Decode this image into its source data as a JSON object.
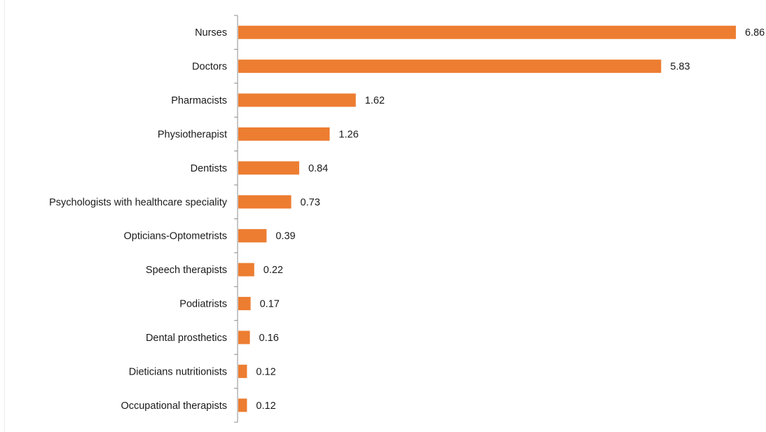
{
  "chart_data": {
    "type": "bar",
    "orientation": "horizontal",
    "categories": [
      "Nurses",
      "Doctors",
      "Pharmacists",
      "Physiotherapist",
      "Dentists",
      "Psychologists with healthcare speciality",
      "Opticians-Optometrists",
      "Speech therapists",
      "Podiatrists",
      "Dental prosthetics",
      "Dieticians nutritionists",
      "Occupational therapists"
    ],
    "values": [
      6.86,
      5.83,
      1.62,
      1.26,
      0.84,
      0.73,
      0.39,
      0.22,
      0.17,
      0.16,
      0.12,
      0.12
    ],
    "value_labels": [
      "6.86",
      "5.83",
      "1.62",
      "1.26",
      "0.84",
      "0.73",
      "0.39",
      "0.22",
      "0.17",
      "0.16",
      "0.12",
      "0.12"
    ],
    "title": "",
    "xlabel": "",
    "ylabel": "",
    "xlim": [
      0,
      6.86
    ],
    "grid": false,
    "bar_color": "#ed7d31",
    "axis_color": "#8c8c8c"
  }
}
